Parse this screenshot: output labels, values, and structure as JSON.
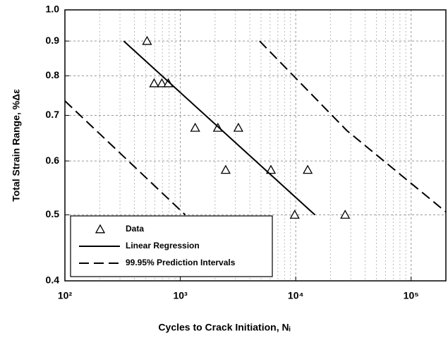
{
  "chart_data": {
    "type": "scatter",
    "xlabel": "Cycles to Crack Initiation, Nᵢ",
    "ylabel": "Total Strain Range, %Δε",
    "xlog": true,
    "ylog": true,
    "grid": true,
    "legend": "lower left",
    "xlim": [
      100,
      200000
    ],
    "ylim": [
      0.4,
      1.0
    ],
    "xticks": [
      {
        "value": 100,
        "label": "10²"
      },
      {
        "value": 1000,
        "label": "10³"
      },
      {
        "value": 10000,
        "label": "10⁴"
      },
      {
        "value": 100000,
        "label": "10⁵"
      }
    ],
    "yticks": [
      0.4,
      0.5,
      0.6,
      0.7,
      0.8,
      0.9,
      {
        "value": 1.0,
        "label": "1.0"
      }
    ],
    "series": [
      {
        "name": "Data",
        "type": "scatter",
        "marker": "triangle",
        "color": "#000000",
        "x": [
          515,
          593,
          692,
          787,
          1345,
          2115,
          3184,
          2472,
          6095,
          12700,
          9800,
          26800
        ],
        "values": [
          0.9,
          0.78,
          0.78,
          0.78,
          0.671,
          0.671,
          0.671,
          0.582,
          0.582,
          0.582,
          0.5,
          0.5
        ]
      },
      {
        "name": "Linear Regression",
        "type": "line",
        "dash": "solid",
        "color": "#000000",
        "x": [
          323,
          14660
        ],
        "values": [
          0.9,
          0.5
        ]
      },
      {
        "name": "99.95% Prediction Intervals",
        "type": "line",
        "dash": "dashed",
        "color": "#000000",
        "x": [
          100,
          1104,
          null,
          4863,
          27700,
          200000
        ],
        "values": [
          0.735,
          0.5,
          null,
          0.9,
          0.665,
          0.505
        ]
      }
    ]
  }
}
